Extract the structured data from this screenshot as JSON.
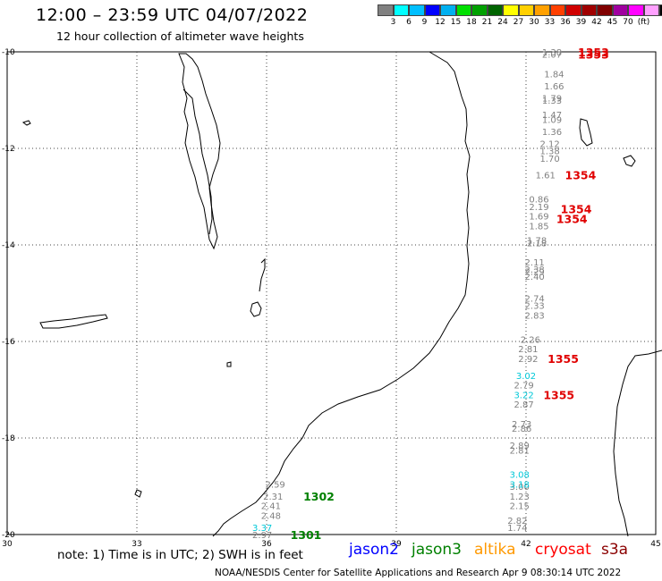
{
  "header": {
    "title": "12:00 – 23:59 UTC 04/07/2022",
    "subtitle": "12 hour collection of altimeter wave heights"
  },
  "scale": {
    "colors": [
      "#808080",
      "#00ffff",
      "#00bfff",
      "#0000ff",
      "#00b0f0",
      "#00e000",
      "#00a000",
      "#006400",
      "#ffff00",
      "#ffd000",
      "#ffa000",
      "#ff4000",
      "#d00000",
      "#a00000",
      "#800000",
      "#a000a0",
      "#ff00ff",
      "#ffa0ff",
      "#000000"
    ],
    "labels": [
      "3",
      "6",
      "9",
      "12",
      "15",
      "18",
      "21",
      "24",
      "27",
      "30",
      "33",
      "36",
      "39",
      "42",
      "45",
      "70",
      "(ft)"
    ]
  },
  "axes": {
    "lat_labels": [
      "-10",
      "-12",
      "-14",
      "-16",
      "-18",
      "-20"
    ],
    "lon_labels": [
      "30",
      "33",
      "36",
      "39",
      "42",
      "45"
    ]
  },
  "tracks": [
    {
      "color": "#808080",
      "labels": [
        {
          "text": "1.38",
          "lat": -10.0,
          "lon": 42.6
        },
        {
          "text": "2.07",
          "lat": -10.05,
          "lon": 42.6
        },
        {
          "text": "1.84",
          "lat": -10.45,
          "lon": 42.65
        },
        {
          "text": "1.66",
          "lat": -10.7,
          "lon": 42.65
        },
        {
          "text": "1.79",
          "lat": -10.95,
          "lon": 42.6
        },
        {
          "text": "1.33",
          "lat": -11.0,
          "lon": 42.6
        },
        {
          "text": "1.47",
          "lat": -11.3,
          "lon": 42.6
        },
        {
          "text": "1.09",
          "lat": -11.4,
          "lon": 42.6
        },
        {
          "text": "1.36",
          "lat": -11.65,
          "lon": 42.6
        },
        {
          "text": "2.12",
          "lat": -11.9,
          "lon": 42.55
        },
        {
          "text": "1.38",
          "lat": -12.05,
          "lon": 42.55
        },
        {
          "text": "1.70",
          "lat": -12.2,
          "lon": 42.55
        },
        {
          "text": "1.61",
          "lat": -12.55,
          "lon": 42.45
        },
        {
          "text": "0.86",
          "lat": -13.05,
          "lon": 42.3
        },
        {
          "text": "2.19",
          "lat": -13.2,
          "lon": 42.3
        },
        {
          "text": "1.69",
          "lat": -13.4,
          "lon": 42.3
        },
        {
          "text": "1.85",
          "lat": -13.6,
          "lon": 42.3
        },
        {
          "text": "1.78",
          "lat": -13.9,
          "lon": 42.25
        },
        {
          "text": "2.18",
          "lat": -13.95,
          "lon": 42.25
        },
        {
          "text": "2.11",
          "lat": -14.35,
          "lon": 42.2
        },
        {
          "text": "2.38",
          "lat": -14.5,
          "lon": 42.2
        },
        {
          "text": "2.29",
          "lat": -14.55,
          "lon": 42.2
        },
        {
          "text": "2.40",
          "lat": -14.65,
          "lon": 42.2
        },
        {
          "text": "2.74",
          "lat": -15.1,
          "lon": 42.2
        },
        {
          "text": "2.33",
          "lat": -15.25,
          "lon": 42.2
        },
        {
          "text": "2.83",
          "lat": -15.45,
          "lon": 42.2
        },
        {
          "text": "2.26",
          "lat": -15.95,
          "lon": 42.1
        },
        {
          "text": "2.81",
          "lat": -16.15,
          "lon": 42.05
        },
        {
          "text": "2.92",
          "lat": -16.35,
          "lon": 42.05
        },
        {
          "text": "2.79",
          "lat": -16.9,
          "lon": 41.95
        },
        {
          "text": "2.87",
          "lat": -17.3,
          "lon": 41.95
        },
        {
          "text": "2.73",
          "lat": -17.7,
          "lon": 41.9
        },
        {
          "text": "2.86",
          "lat": -17.8,
          "lon": 41.9
        },
        {
          "text": "2.89",
          "lat": -18.15,
          "lon": 41.85
        },
        {
          "text": "2.81",
          "lat": -18.25,
          "lon": 41.85
        },
        {
          "text": "3.00",
          "lat": -19.0,
          "lon": 41.85
        },
        {
          "text": "1.23",
          "lat": -19.2,
          "lon": 41.85
        },
        {
          "text": "2.15",
          "lat": -19.4,
          "lon": 41.85
        },
        {
          "text": "2.82",
          "lat": -19.7,
          "lon": 41.8
        },
        {
          "text": "1.74",
          "lat": -19.85,
          "lon": 41.8
        }
      ]
    },
    {
      "color": "#00c8d8",
      "labels": [
        {
          "text": "3.02",
          "lat": -16.7,
          "lon": 42.0
        },
        {
          "text": "3.22",
          "lat": -17.1,
          "lon": 41.95
        },
        {
          "text": "3.08",
          "lat": -18.75,
          "lon": 41.85
        },
        {
          "text": "3.18",
          "lat": -18.95,
          "lon": 41.85
        },
        {
          "text": "3.37",
          "lat": -19.85,
          "lon": 35.9
        }
      ]
    },
    {
      "color": "#808080",
      "labels": [
        {
          "text": "2.59",
          "lat": -18.95,
          "lon": 36.2
        },
        {
          "text": "2.31",
          "lat": -19.2,
          "lon": 36.15
        },
        {
          "text": "2.41",
          "lat": -19.4,
          "lon": 36.1
        },
        {
          "text": "2.48",
          "lat": -19.6,
          "lon": 36.1
        },
        {
          "text": "2.97",
          "lat": -20.0,
          "lon": 35.9
        }
      ]
    }
  ],
  "pass_labels": [
    {
      "text": "1353",
      "color": "#e00000",
      "lat": -10.0,
      "lon": 43.2
    },
    {
      "text": "1353",
      "color": "#e00000",
      "lat": -10.05,
      "lon": 43.2
    },
    {
      "text": "1354",
      "color": "#e00000",
      "lat": -12.55,
      "lon": 42.9
    },
    {
      "text": "1354",
      "color": "#e00000",
      "lat": -13.25,
      "lon": 42.8
    },
    {
      "text": "1354",
      "color": "#e00000",
      "lat": -13.45,
      "lon": 42.7
    },
    {
      "text": "1355",
      "color": "#e00000",
      "lat": -16.35,
      "lon": 42.5
    },
    {
      "text": "1355",
      "color": "#e00000",
      "lat": -17.1,
      "lon": 42.4
    },
    {
      "text": "1302",
      "color": "#008000",
      "lat": -19.2,
      "lon": 36.85
    },
    {
      "text": "1301",
      "color": "#008000",
      "lat": -20.0,
      "lon": 36.55
    }
  ],
  "footer": {
    "note": "note:  1) Time is in UTC;  2) SWH is in feet",
    "satellites": [
      {
        "name": "jason2",
        "color": "#0000ff"
      },
      {
        "name": "jason3",
        "color": "#008000"
      },
      {
        "name": "altika",
        "color": "#ff9900"
      },
      {
        "name": "cryosat",
        "color": "#ff0000"
      },
      {
        "name": "s3a",
        "color": "#8b0000"
      }
    ],
    "credit": "NOAA/NESDIS Center for Satellite Applications and Research    Apr  9 08:30:14 UTC 2022"
  }
}
